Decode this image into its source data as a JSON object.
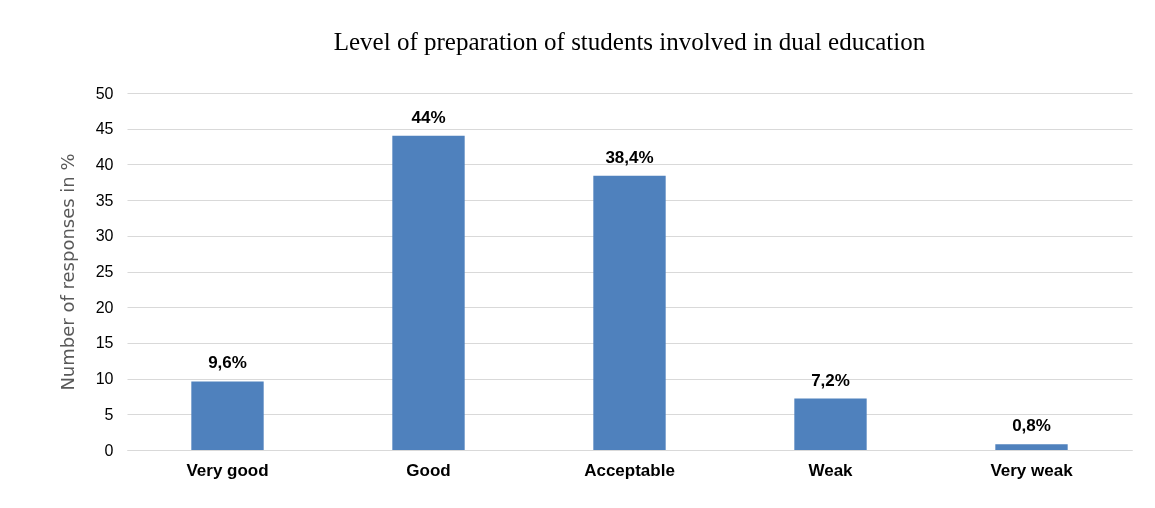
{
  "chart_data": {
    "type": "bar",
    "title": "Level of preparation of students involved in dual education",
    "ylabel": "Number of responses in %",
    "categories": [
      "Very good",
      "Good",
      "Acceptable",
      "Weak",
      "Very weak"
    ],
    "values": [
      9.6,
      44,
      38.4,
      7.2,
      0.8
    ],
    "value_labels": [
      "9,6%",
      "44%",
      "38,4%",
      "7,2%",
      "0,8%"
    ],
    "color": "#4f81bd",
    "ylim": [
      0,
      50
    ],
    "yticks": [
      0,
      5,
      10,
      15,
      20,
      25,
      30,
      35,
      40,
      45,
      50
    ],
    "grid": "y"
  }
}
